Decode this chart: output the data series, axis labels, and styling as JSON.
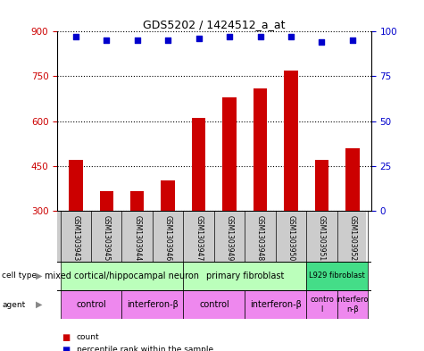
{
  "title": "GDS5202 / 1424512_a_at",
  "samples": [
    "GSM1303943",
    "GSM1303945",
    "GSM1303944",
    "GSM1303946",
    "GSM1303947",
    "GSM1303949",
    "GSM1303948",
    "GSM1303950",
    "GSM1303951",
    "GSM1303952"
  ],
  "bar_values": [
    470,
    365,
    365,
    400,
    610,
    680,
    710,
    770,
    470,
    510
  ],
  "percentile_values": [
    97,
    95,
    95,
    95,
    96,
    97,
    97,
    97,
    94,
    95
  ],
  "bar_color": "#cc0000",
  "dot_color": "#0000cc",
  "ylim_left": [
    300,
    900
  ],
  "yticks_left": [
    300,
    450,
    600,
    750,
    900
  ],
  "ylim_right": [
    0,
    100
  ],
  "yticks_right": [
    0,
    25,
    50,
    75,
    100
  ],
  "cell_defs": [
    {
      "start": 0,
      "end": 3,
      "label": "mixed cortical/hippocampal neuron",
      "color": "#bbffbb",
      "fontsize": 7
    },
    {
      "start": 4,
      "end": 7,
      "label": "primary fibroblast",
      "color": "#bbffbb",
      "fontsize": 7
    },
    {
      "start": 8,
      "end": 9,
      "label": "L929 fibroblast",
      "color": "#44dd88",
      "fontsize": 6
    }
  ],
  "agent_defs": [
    {
      "start": 0,
      "end": 1,
      "label": "control",
      "color": "#ee88ee",
      "fontsize": 7
    },
    {
      "start": 2,
      "end": 3,
      "label": "interferon-β",
      "color": "#ee88ee",
      "fontsize": 7
    },
    {
      "start": 4,
      "end": 5,
      "label": "control",
      "color": "#ee88ee",
      "fontsize": 7
    },
    {
      "start": 6,
      "end": 7,
      "label": "interferon-β",
      "color": "#ee88ee",
      "fontsize": 7
    },
    {
      "start": 8,
      "end": 8,
      "label": "contro\nl",
      "color": "#ee88ee",
      "fontsize": 6
    },
    {
      "start": 9,
      "end": 9,
      "label": "interfero\nn-β",
      "color": "#ee88ee",
      "fontsize": 6
    }
  ],
  "left_tick_color": "#cc0000",
  "right_tick_color": "#0000cc",
  "bar_width": 0.45,
  "dot_size": 25,
  "sample_bg_color": "#cccccc",
  "grid_linestyle": ":",
  "grid_linewidth": 0.8,
  "grid_color": "#000000"
}
